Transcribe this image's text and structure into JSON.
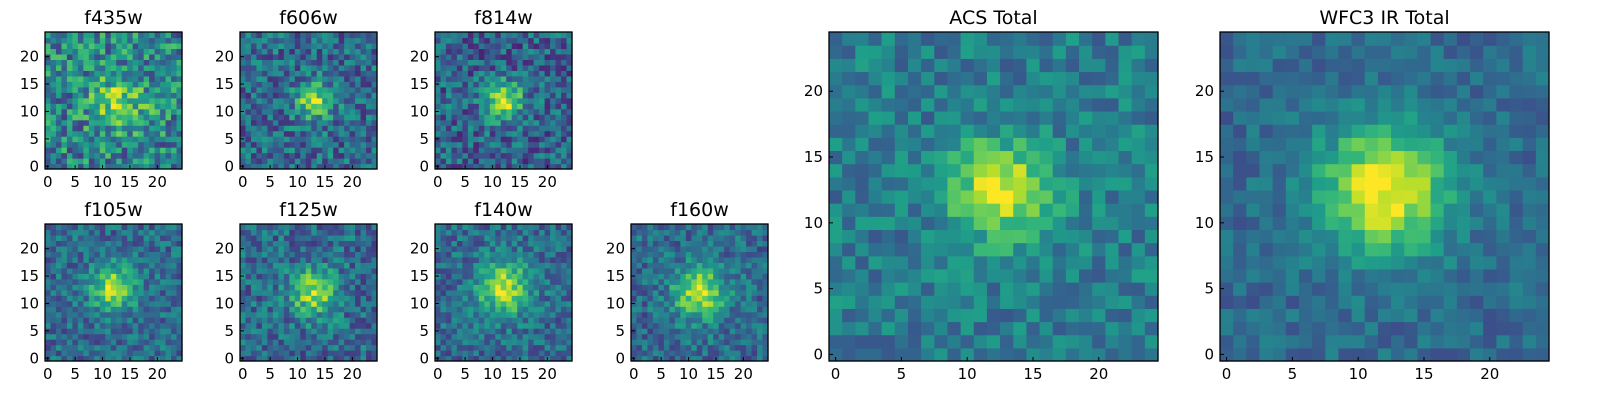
{
  "chart_data": [
    {
      "type": "heatmap",
      "title": "f435w",
      "grid_size": 25,
      "peak": [
        13,
        12
      ],
      "sigma": 3.5,
      "signal": 0.35,
      "noise": 0.55,
      "base": 0.45,
      "seed": 11,
      "x_ticks": [
        0,
        5,
        10,
        15,
        20
      ],
      "y_ticks": [
        0,
        5,
        10,
        15,
        20
      ]
    },
    {
      "type": "heatmap",
      "title": "f606w",
      "grid_size": 25,
      "peak": [
        13,
        12
      ],
      "sigma": 2.2,
      "signal": 0.55,
      "noise": 0.45,
      "base": 0.35,
      "seed": 23,
      "x_ticks": [
        0,
        5,
        10,
        15,
        20
      ],
      "y_ticks": [
        0,
        5,
        10,
        15,
        20
      ]
    },
    {
      "type": "heatmap",
      "title": "f814w",
      "grid_size": 25,
      "peak": [
        12,
        12
      ],
      "sigma": 2.4,
      "signal": 0.6,
      "noise": 0.45,
      "base": 0.32,
      "seed": 37,
      "x_ticks": [
        0,
        5,
        10,
        15,
        20
      ],
      "y_ticks": [
        0,
        5,
        10,
        15,
        20
      ]
    },
    {
      "type": "heatmap",
      "title": "f105w",
      "grid_size": 25,
      "peak": [
        12,
        13
      ],
      "sigma": 2.8,
      "signal": 0.55,
      "noise": 0.35,
      "base": 0.35,
      "seed": 41,
      "x_ticks": [
        0,
        5,
        10,
        15,
        20
      ],
      "y_ticks": [
        0,
        5,
        10,
        15,
        20
      ]
    },
    {
      "type": "heatmap",
      "title": "f125w",
      "grid_size": 25,
      "peak": [
        13,
        12
      ],
      "sigma": 3.0,
      "signal": 0.5,
      "noise": 0.4,
      "base": 0.35,
      "seed": 53,
      "x_ticks": [
        0,
        5,
        10,
        15,
        20
      ],
      "y_ticks": [
        0,
        5,
        10,
        15,
        20
      ]
    },
    {
      "type": "heatmap",
      "title": "f140w",
      "grid_size": 25,
      "peak": [
        12,
        13
      ],
      "sigma": 3.4,
      "signal": 0.55,
      "noise": 0.35,
      "base": 0.35,
      "seed": 67,
      "x_ticks": [
        0,
        5,
        10,
        15,
        20
      ],
      "y_ticks": [
        0,
        5,
        10,
        15,
        20
      ]
    },
    {
      "type": "heatmap",
      "title": "f160w",
      "grid_size": 25,
      "peak": [
        12,
        12
      ],
      "sigma": 3.3,
      "signal": 0.55,
      "noise": 0.35,
      "base": 0.35,
      "seed": 79,
      "x_ticks": [
        0,
        5,
        10,
        15,
        20
      ],
      "y_ticks": [
        0,
        5,
        10,
        15,
        20
      ]
    },
    {
      "type": "heatmap",
      "title": "ACS Total",
      "grid_size": 25,
      "peak": [
        12.5,
        12.5
      ],
      "sigma": 2.6,
      "signal": 0.55,
      "noise": 0.3,
      "base": 0.42,
      "seed": 97,
      "x_ticks": [
        0,
        5,
        10,
        15,
        20
      ],
      "y_ticks": [
        0,
        5,
        10,
        15,
        20
      ]
    },
    {
      "type": "heatmap",
      "title": "WFC3 IR Total",
      "grid_size": 25,
      "peak": [
        12,
        12.5
      ],
      "sigma": 3.4,
      "signal": 0.65,
      "noise": 0.22,
      "base": 0.35,
      "seed": 113,
      "x_ticks": [
        0,
        5,
        10,
        15,
        20
      ],
      "y_ticks": [
        0,
        5,
        10,
        15,
        20
      ]
    }
  ],
  "colormap": [
    "#440154",
    "#482878",
    "#3e4989",
    "#31688e",
    "#26828e",
    "#1f9e89",
    "#35b779",
    "#6ece58",
    "#b5de2b",
    "#fde725"
  ]
}
